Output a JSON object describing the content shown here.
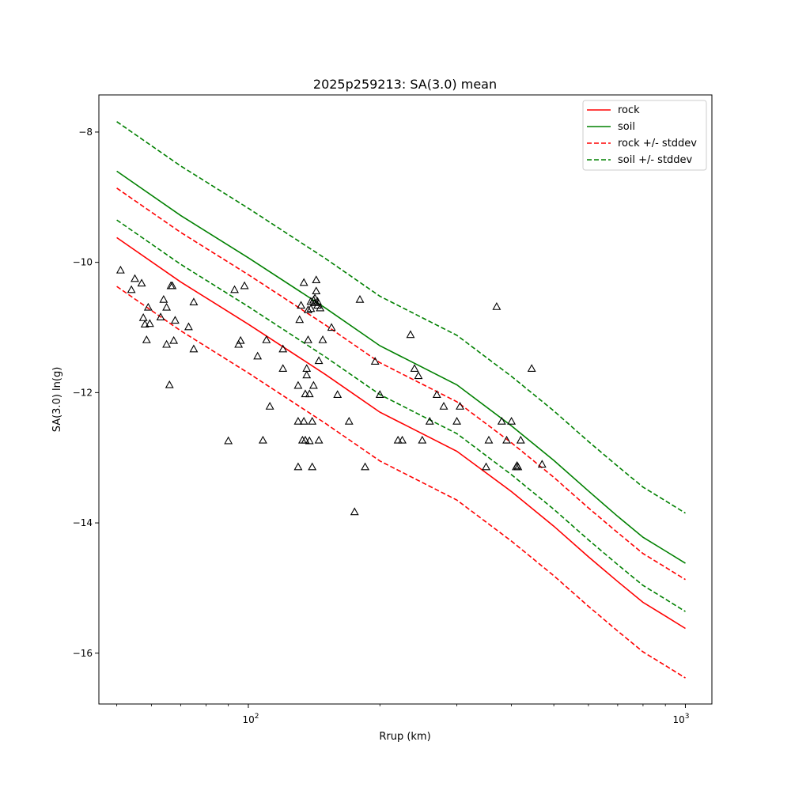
{
  "chart_data": {
    "type": "scatter",
    "title": "2025p259213: SA(3.0) mean",
    "xlabel": "Rrup (km)",
    "ylabel": "SA(3.0) ln(g)",
    "xscale": "log",
    "xlim": [
      45.5,
      1150
    ],
    "ylim": [
      -16.78,
      -7.43
    ],
    "xticks": [
      {
        "value": 100,
        "label": "10"
      },
      {
        "value": 1000,
        "label": "10"
      }
    ],
    "xtick_exponent": "2",
    "xtick_exponent_2": "3",
    "yticks": [
      {
        "value": -8,
        "label": "−8"
      },
      {
        "value": -10,
        "label": "−10"
      },
      {
        "value": -12,
        "label": "−12"
      },
      {
        "value": -14,
        "label": "−14"
      },
      {
        "value": -16,
        "label": "−16"
      }
    ],
    "legend_position": "top-right",
    "legend": [
      {
        "label": "rock",
        "color": "#ff0000",
        "style": "solid"
      },
      {
        "label": "soil",
        "color": "#008000",
        "style": "solid"
      },
      {
        "label": "rock +/- stddev",
        "color": "#ff0000",
        "style": "dashed"
      },
      {
        "label": "soil +/- stddev",
        "color": "#008000",
        "style": "dashed"
      }
    ],
    "curves": [
      {
        "id": "rock",
        "color": "#ff0000",
        "style": "solid",
        "x": [
          50,
          70,
          100,
          150,
          200,
          300,
          400,
          500,
          600,
          700,
          800,
          900,
          1000
        ],
        "y": [
          -9.62,
          -10.3,
          -10.95,
          -11.72,
          -12.3,
          -12.9,
          -13.52,
          -14.05,
          -14.52,
          -14.9,
          -15.22,
          -15.43,
          -15.62
        ]
      },
      {
        "id": "soil",
        "color": "#008000",
        "style": "solid",
        "x": [
          50,
          70,
          100,
          150,
          200,
          300,
          400,
          500,
          600,
          700,
          800,
          900,
          1000
        ],
        "y": [
          -8.6,
          -9.28,
          -9.93,
          -10.7,
          -11.28,
          -11.88,
          -12.51,
          -13.04,
          -13.51,
          -13.9,
          -14.22,
          -14.43,
          -14.62
        ]
      },
      {
        "id": "rock-plus",
        "color": "#ff0000",
        "style": "dashed",
        "x": [
          50,
          70,
          100,
          150,
          200,
          300,
          400,
          500,
          600,
          700,
          800,
          900,
          1000
        ],
        "y": [
          -8.86,
          -9.54,
          -10.19,
          -10.96,
          -11.54,
          -12.14,
          -12.77,
          -13.3,
          -13.77,
          -14.15,
          -14.47,
          -14.68,
          -14.87
        ]
      },
      {
        "id": "rock-minus",
        "color": "#ff0000",
        "style": "dashed",
        "x": [
          50,
          70,
          100,
          150,
          200,
          300,
          400,
          500,
          600,
          700,
          800,
          900,
          1000
        ],
        "y": [
          -10.37,
          -11.05,
          -11.7,
          -12.47,
          -13.05,
          -13.65,
          -14.28,
          -14.81,
          -15.28,
          -15.66,
          -15.98,
          -16.19,
          -16.38
        ]
      },
      {
        "id": "soil-plus",
        "color": "#008000",
        "style": "dashed",
        "x": [
          50,
          70,
          100,
          150,
          200,
          300,
          400,
          500,
          600,
          700,
          800,
          900,
          1000
        ],
        "y": [
          -7.84,
          -8.52,
          -9.17,
          -9.94,
          -10.52,
          -11.12,
          -11.75,
          -12.28,
          -12.75,
          -13.13,
          -13.45,
          -13.66,
          -13.85
        ]
      },
      {
        "id": "soil-minus",
        "color": "#008000",
        "style": "dashed",
        "x": [
          50,
          70,
          100,
          150,
          200,
          300,
          400,
          500,
          600,
          700,
          800,
          900,
          1000
        ],
        "y": [
          -9.35,
          -10.03,
          -10.68,
          -11.45,
          -12.03,
          -12.63,
          -13.26,
          -13.79,
          -14.26,
          -14.64,
          -14.96,
          -15.17,
          -15.36
        ]
      }
    ],
    "points": {
      "marker": "triangle-open",
      "x": [
        51,
        59,
        54,
        55,
        57,
        57.5,
        58,
        58.5,
        59.5,
        64,
        65,
        65,
        66,
        66.5,
        67,
        67.5,
        68,
        63,
        73,
        75,
        75,
        93,
        96,
        98,
        105,
        108,
        110,
        112,
        90,
        95,
        120,
        120,
        130,
        130,
        130,
        131,
        132,
        133,
        134,
        134,
        135,
        135,
        136,
        136,
        137,
        137,
        138,
        138,
        139,
        139,
        140,
        140,
        141,
        141,
        142,
        142,
        143,
        143,
        144,
        144,
        145,
        145,
        146,
        148,
        155,
        160,
        170,
        175,
        180,
        185,
        195,
        200,
        220,
        225,
        235,
        240,
        245,
        250,
        260,
        270,
        280,
        300,
        305,
        350,
        355,
        370,
        380,
        390,
        400,
        410,
        412,
        414,
        420,
        445,
        470
      ],
      "y": [
        -10.12,
        -10.69,
        -10.42,
        -10.25,
        -10.32,
        -10.85,
        -10.95,
        -11.19,
        -10.94,
        -10.57,
        -10.69,
        -11.26,
        -11.88,
        -10.36,
        -10.36,
        -11.2,
        -10.89,
        -10.84,
        -10.99,
        -10.61,
        -11.33,
        -10.42,
        -11.2,
        -10.36,
        -11.44,
        -12.73,
        -11.19,
        -12.21,
        -12.74,
        -11.26,
        -11.33,
        -11.63,
        -12.44,
        -13.14,
        -11.89,
        -10.88,
        -10.66,
        -12.73,
        -10.31,
        -12.44,
        -12.73,
        -12.02,
        -11.63,
        -11.73,
        -10.73,
        -11.19,
        -12.02,
        -12.74,
        -10.71,
        -10.6,
        -12.44,
        -13.14,
        -10.58,
        -11.89,
        -10.55,
        -10.62,
        -10.27,
        -10.44,
        -10.6,
        -10.66,
        -11.51,
        -12.73,
        -10.7,
        -11.19,
        -11.0,
        -12.03,
        -12.44,
        -13.83,
        -10.57,
        -13.14,
        -11.52,
        -12.03,
        -12.73,
        -12.73,
        -11.11,
        -11.63,
        -11.74,
        -12.73,
        -12.44,
        -12.03,
        -12.21,
        -12.44,
        -12.21,
        -13.14,
        -12.73,
        -10.68,
        -12.44,
        -12.73,
        -12.44,
        -13.14,
        -13.12,
        -13.14,
        -12.73,
        -11.63,
        -13.1
      ]
    }
  }
}
